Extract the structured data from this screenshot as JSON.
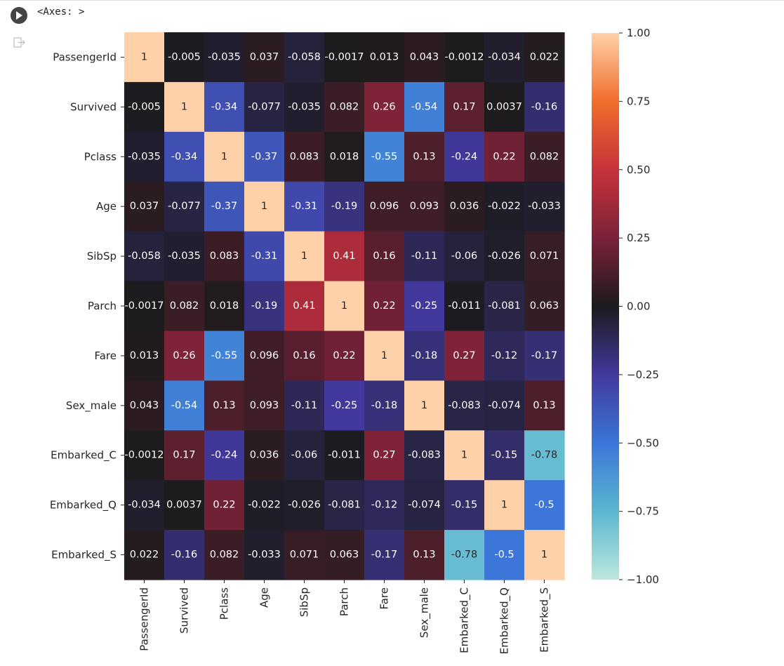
{
  "cell": {
    "output_text": "<Axes: >",
    "run_icon": "play-icon",
    "output_icon": "output-arrow-icon"
  },
  "chart_data": {
    "type": "heatmap",
    "labels": [
      "PassengerId",
      "Survived",
      "Pclass",
      "Age",
      "SibSp",
      "Parch",
      "Fare",
      "Sex_male",
      "Embarked_C",
      "Embarked_Q",
      "Embarked_S"
    ],
    "values": [
      [
        1,
        -0.005,
        -0.035,
        0.037,
        -0.058,
        -0.0017,
        0.013,
        0.043,
        -0.0012,
        -0.034,
        0.022
      ],
      [
        -0.005,
        1,
        -0.34,
        -0.077,
        -0.035,
        0.082,
        0.26,
        -0.54,
        0.17,
        0.0037,
        -0.16
      ],
      [
        -0.035,
        -0.34,
        1,
        -0.37,
        0.083,
        0.018,
        -0.55,
        0.13,
        -0.24,
        0.22,
        0.082
      ],
      [
        0.037,
        -0.077,
        -0.37,
        1,
        -0.31,
        -0.19,
        0.096,
        0.093,
        0.036,
        -0.022,
        -0.033
      ],
      [
        -0.058,
        -0.035,
        0.083,
        -0.31,
        1,
        0.41,
        0.16,
        -0.11,
        -0.06,
        -0.026,
        0.071
      ],
      [
        -0.0017,
        0.082,
        0.018,
        -0.19,
        0.41,
        1,
        0.22,
        -0.25,
        -0.011,
        -0.081,
        0.063
      ],
      [
        0.013,
        0.26,
        -0.55,
        0.096,
        0.16,
        0.22,
        1,
        -0.18,
        0.27,
        -0.12,
        -0.17
      ],
      [
        0.043,
        -0.54,
        0.13,
        0.093,
        -0.11,
        -0.25,
        -0.18,
        1,
        -0.083,
        -0.074,
        0.13
      ],
      [
        -0.0012,
        0.17,
        -0.24,
        0.036,
        -0.06,
        -0.011,
        0.27,
        -0.083,
        1,
        -0.15,
        -0.78
      ],
      [
        -0.034,
        0.0037,
        0.22,
        -0.022,
        -0.026,
        -0.081,
        -0.12,
        -0.074,
        -0.15,
        1,
        -0.5
      ],
      [
        0.022,
        -0.16,
        0.082,
        -0.033,
        0.071,
        0.063,
        -0.17,
        0.13,
        -0.78,
        -0.5,
        1
      ]
    ],
    "cell_labels": [
      [
        "1",
        "-0.005",
        "-0.035",
        "0.037",
        "-0.058",
        "-0.0017",
        "0.013",
        "0.043",
        "-0.0012",
        "-0.034",
        "0.022"
      ],
      [
        "-0.005",
        "1",
        "-0.34",
        "-0.077",
        "-0.035",
        "0.082",
        "0.26",
        "-0.54",
        "0.17",
        "0.0037",
        "-0.16"
      ],
      [
        "-0.035",
        "-0.34",
        "1",
        "-0.37",
        "0.083",
        "0.018",
        "-0.55",
        "0.13",
        "-0.24",
        "0.22",
        "0.082"
      ],
      [
        "0.037",
        "-0.077",
        "-0.37",
        "1",
        "-0.31",
        "-0.19",
        "0.096",
        "0.093",
        "0.036",
        "-0.022",
        "-0.033"
      ],
      [
        "-0.058",
        "-0.035",
        "0.083",
        "-0.31",
        "1",
        "0.41",
        "0.16",
        "-0.11",
        "-0.06",
        "-0.026",
        "0.071"
      ],
      [
        "-0.0017",
        "0.082",
        "0.018",
        "-0.19",
        "0.41",
        "1",
        "0.22",
        "-0.25",
        "-0.011",
        "-0.081",
        "0.063"
      ],
      [
        "0.013",
        "0.26",
        "-0.55",
        "0.096",
        "0.16",
        "0.22",
        "1",
        "-0.18",
        "0.27",
        "-0.12",
        "-0.17"
      ],
      [
        "0.043",
        "-0.54",
        "0.13",
        "0.093",
        "-0.11",
        "-0.25",
        "-0.18",
        "1",
        "-0.083",
        "-0.074",
        "0.13"
      ],
      [
        "-0.0012",
        "0.17",
        "-0.24",
        "0.036",
        "-0.06",
        "-0.011",
        "0.27",
        "-0.083",
        "1",
        "-0.15",
        "-0.78"
      ],
      [
        "-0.034",
        "0.0037",
        "0.22",
        "-0.022",
        "-0.026",
        "-0.081",
        "-0.12",
        "-0.074",
        "-0.15",
        "1",
        "-0.5"
      ],
      [
        "0.022",
        "-0.16",
        "0.082",
        "-0.033",
        "0.071",
        "0.063",
        "-0.17",
        "0.13",
        "-0.78",
        "-0.5",
        "1"
      ]
    ],
    "colorbar": {
      "vmin": -1.0,
      "vmax": 1.0,
      "ticks": [
        1.0,
        0.75,
        0.5,
        0.25,
        0.0,
        -0.25,
        -0.5,
        -0.75,
        -1.0
      ],
      "tick_labels": [
        "1.00",
        "0.75",
        "0.50",
        "0.25",
        "0.00",
        "−0.25",
        "−0.50",
        "−0.75",
        "−1.00"
      ],
      "colormap": "icefire",
      "colormap_stops": [
        {
          "v": -1.0,
          "color": "#bde7db"
        },
        {
          "v": -0.75,
          "color": "#5bb6d0"
        },
        {
          "v": -0.5,
          "color": "#3b76d8"
        },
        {
          "v": -0.25,
          "color": "#42399d"
        },
        {
          "v": 0.0,
          "color": "#1c1b1d"
        },
        {
          "v": 0.25,
          "color": "#7b2238"
        },
        {
          "v": 0.5,
          "color": "#c8323c"
        },
        {
          "v": 0.75,
          "color": "#f06d2a"
        },
        {
          "v": 1.0,
          "color": "#ffd1a9"
        }
      ]
    },
    "text_color_light": "#ffffff",
    "text_color_dark": "#262626",
    "title": "",
    "xlabel": "",
    "ylabel": ""
  }
}
